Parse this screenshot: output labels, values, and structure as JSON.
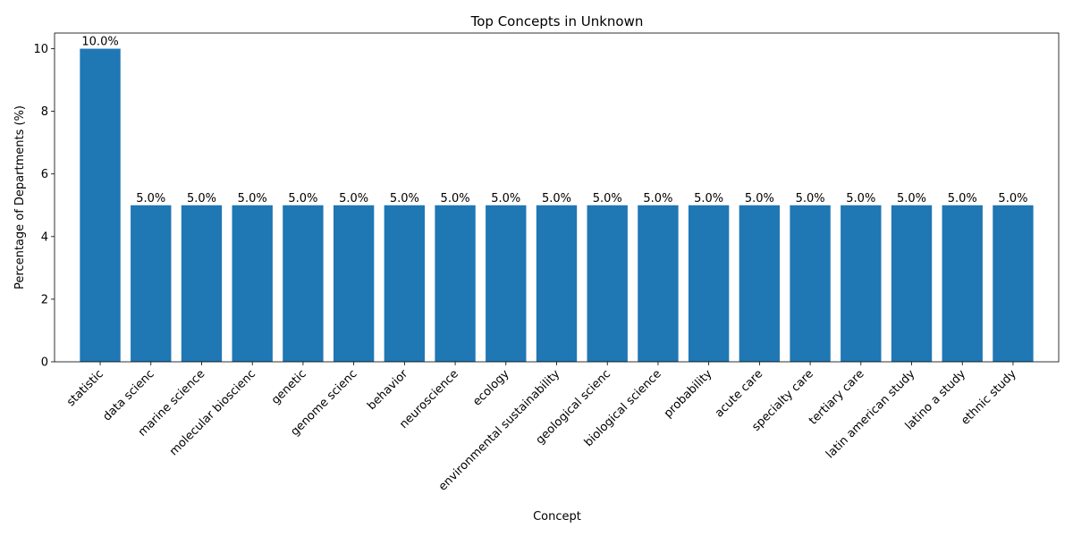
{
  "chart_data": {
    "type": "bar",
    "title": "Top Concepts in Unknown",
    "xlabel": "Concept",
    "ylabel": "Percentage of Departments (%)",
    "categories": [
      "statistic",
      "data scienc",
      "marine science",
      "molecular bioscienc",
      "genetic",
      "genome scienc",
      "behavior",
      "neuroscience",
      "ecology",
      "environmental sustainability",
      "geological scienc",
      "biological science",
      "probability",
      "acute care",
      "specialty care",
      "tertiary care",
      "latin american study",
      "latino a study",
      "ethnic study"
    ],
    "values": [
      10.0,
      5.0,
      5.0,
      5.0,
      5.0,
      5.0,
      5.0,
      5.0,
      5.0,
      5.0,
      5.0,
      5.0,
      5.0,
      5.0,
      5.0,
      5.0,
      5.0,
      5.0,
      5.0
    ],
    "value_labels": [
      "10.0%",
      "5.0%",
      "5.0%",
      "5.0%",
      "5.0%",
      "5.0%",
      "5.0%",
      "5.0%",
      "5.0%",
      "5.0%",
      "5.0%",
      "5.0%",
      "5.0%",
      "5.0%",
      "5.0%",
      "5.0%",
      "5.0%",
      "5.0%",
      "5.0%"
    ],
    "ylim": [
      0,
      10.5
    ],
    "yticks": [
      0,
      2,
      4,
      6,
      8,
      10
    ],
    "ytick_labels": [
      "0",
      "2",
      "4",
      "6",
      "8",
      "10"
    ],
    "grid": false,
    "bar_color": "#1f77b4"
  }
}
